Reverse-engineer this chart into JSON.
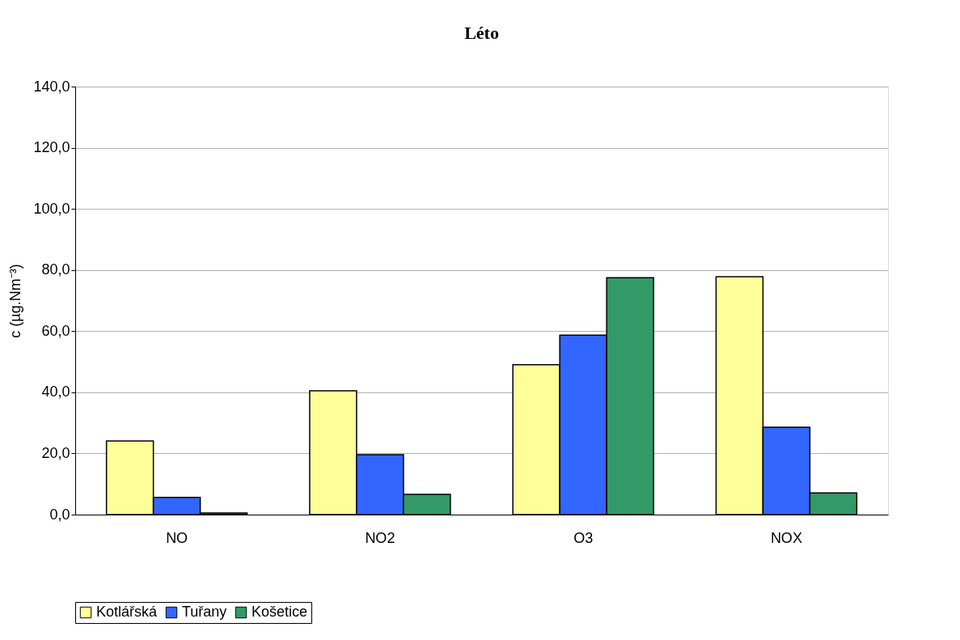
{
  "chart_data": {
    "type": "bar",
    "title": "Léto",
    "ylabel": "c (µg.Nm⁻³)",
    "categories": [
      "NO",
      "NO2",
      "O3",
      "NOX"
    ],
    "series": [
      {
        "name": "Kotlářská",
        "color": "#ffff99",
        "values": [
          24.1,
          40.5,
          49.0,
          77.8
        ]
      },
      {
        "name": "Tuřany",
        "color": "#3366ff",
        "values": [
          5.6,
          19.6,
          58.7,
          28.6
        ]
      },
      {
        "name": "Košetice",
        "color": "#339966",
        "values": [
          0.5,
          6.6,
          77.5,
          7.1
        ]
      }
    ],
    "ylim": [
      0,
      140
    ],
    "yticks": [
      {
        "value": 0,
        "label": "0,0"
      },
      {
        "value": 20,
        "label": "20,0"
      },
      {
        "value": 40,
        "label": "40,0"
      },
      {
        "value": 60,
        "label": "60,0"
      },
      {
        "value": 80,
        "label": "80,0"
      },
      {
        "value": 100,
        "label": "100,0"
      },
      {
        "value": 120,
        "label": "120,0"
      },
      {
        "value": 140,
        "label": "140,0"
      }
    ],
    "grid": "y",
    "legend": "bottom"
  }
}
